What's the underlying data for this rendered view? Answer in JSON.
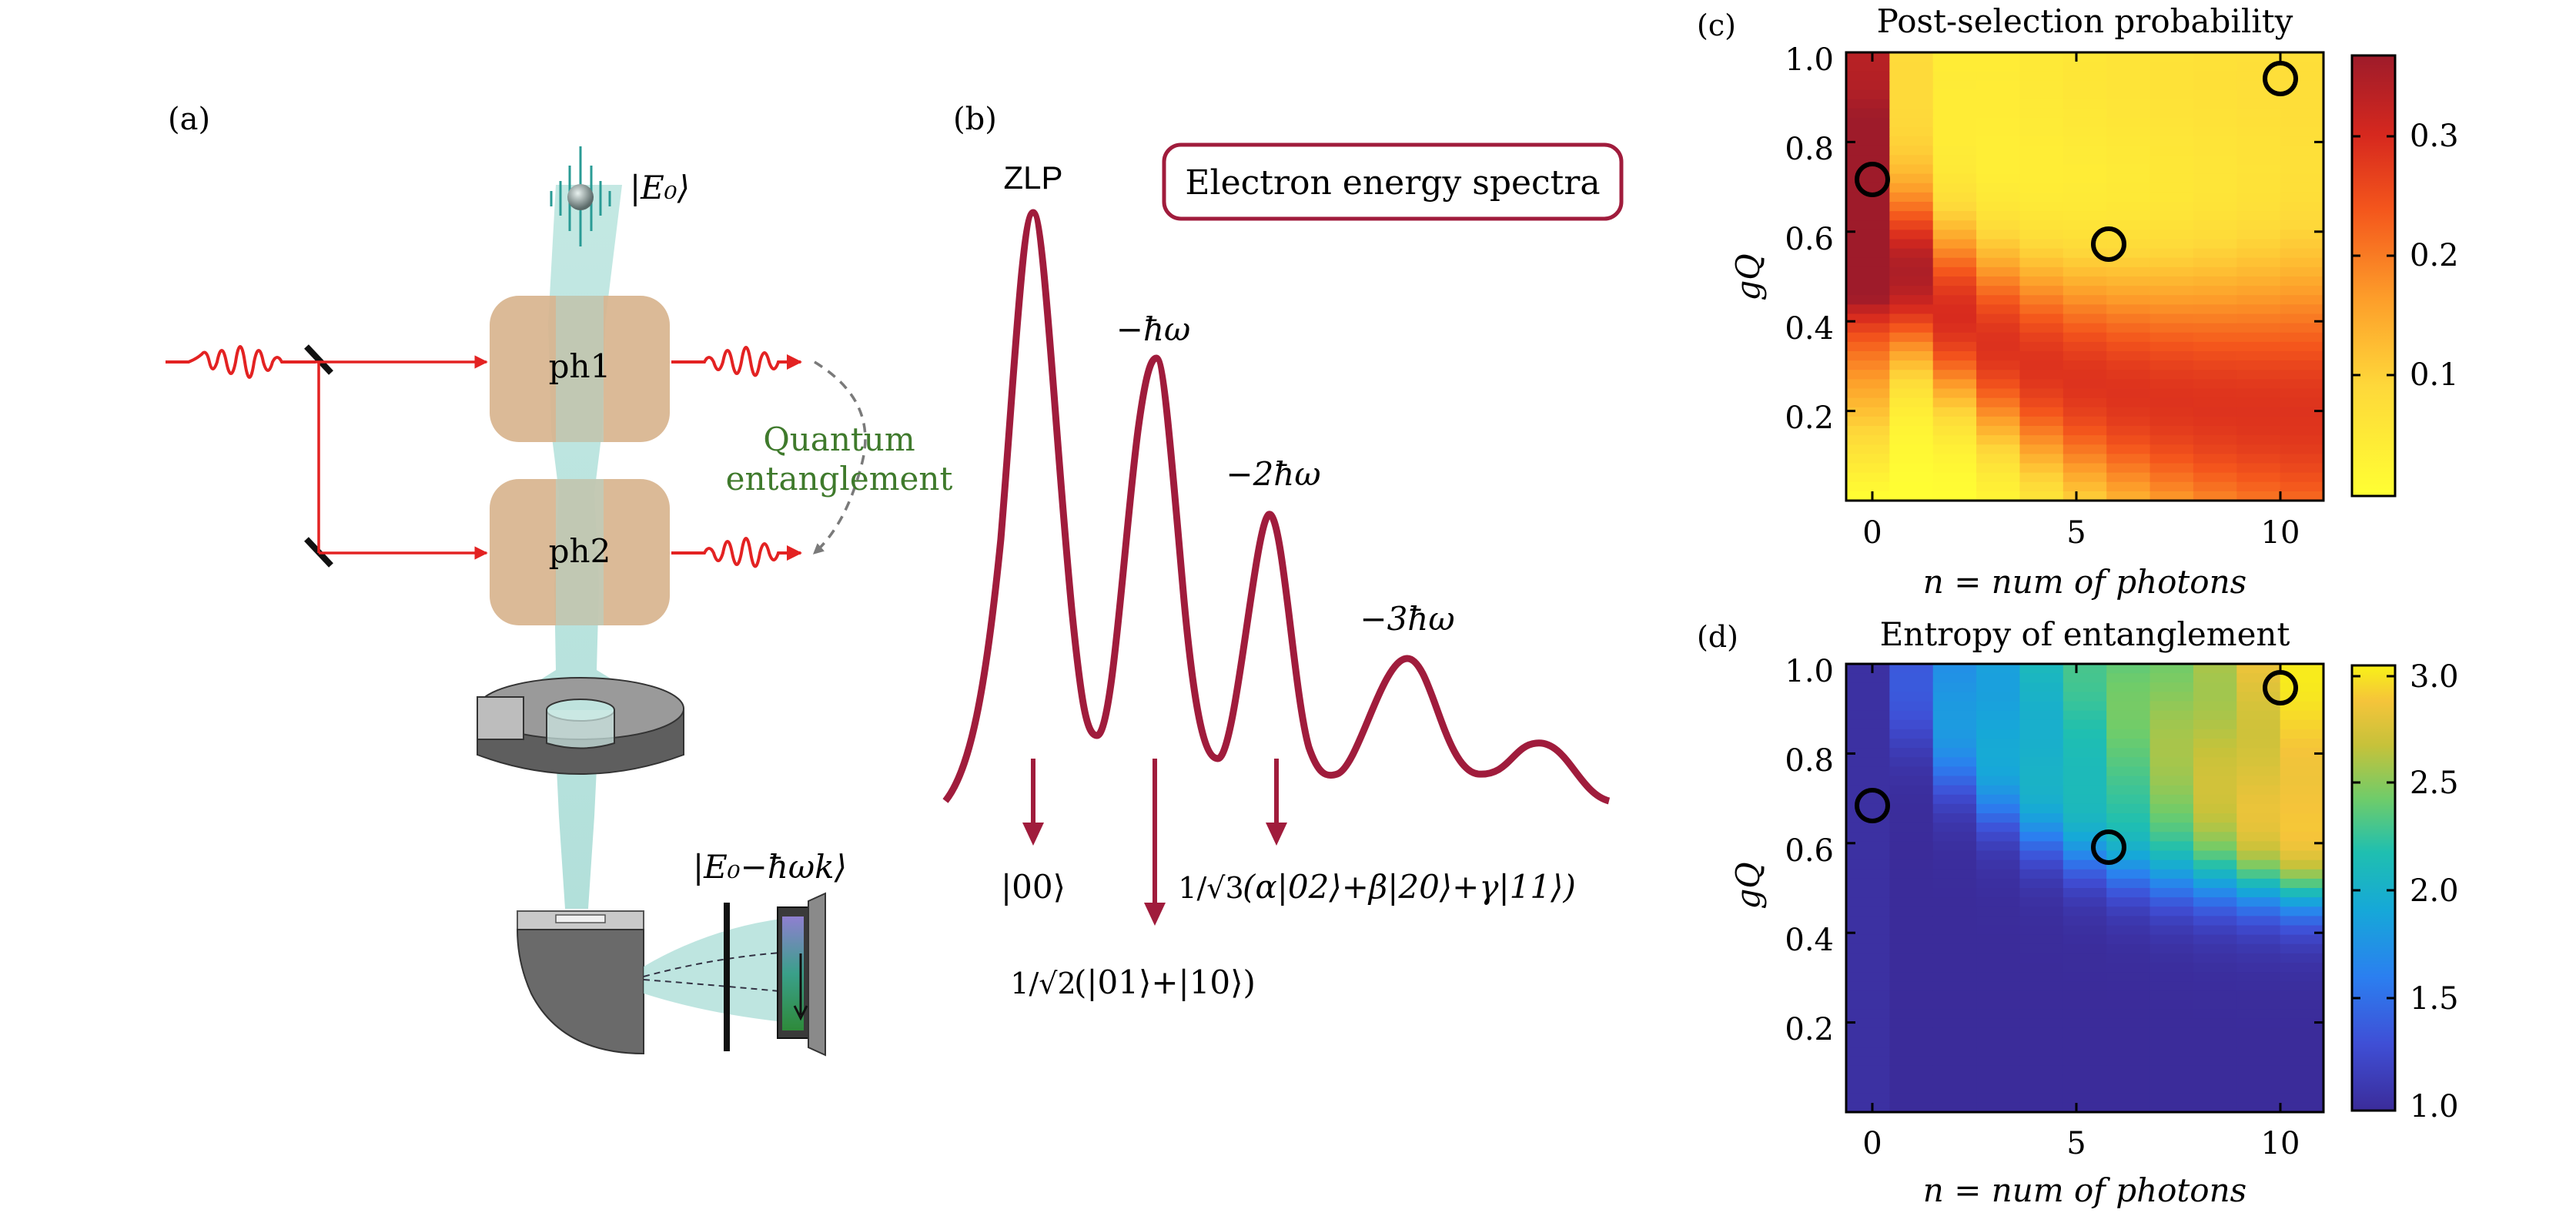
{
  "panel_a": {
    "label": "(a)",
    "ket_input": "|E₀⟩",
    "cavity_1": "ph1",
    "cavity_2": "ph2",
    "entanglement_line1": "Quantum",
    "entanglement_line2": "entanglement",
    "ket_output": "|E₀−ħωk⟩",
    "colors": {
      "laser": "#e32222",
      "cavity": "#d8b48e",
      "beam": "#a8dcd6",
      "entangle_text": "#3f7a2c",
      "metal": "#6b6b6b"
    }
  },
  "panel_b": {
    "label": "(b)",
    "box_title": "Electron energy spectra",
    "peak_0": "ZLP",
    "peak_1": "−ħω",
    "peak_2": "−2ħω",
    "peak_3": "−3ħω",
    "state_0": "|00⟩",
    "state_1_frac": "1/√2",
    "state_1": "(|01⟩+|10⟩)",
    "state_2_frac": "1/√3",
    "state_2": "(α|02⟩+β|20⟩+γ|11⟩)",
    "colors": {
      "spectrum": "#a01c3c"
    }
  },
  "panel_c": {
    "label": "(c)",
    "title": "Post-selection probability",
    "xlabel": "n = num of photons",
    "ylabel": "gQ",
    "x_ticks": [
      "0",
      "5",
      "10"
    ],
    "y_ticks": [
      "0.2",
      "0.4",
      "0.6",
      "0.8",
      "1.0"
    ],
    "colorbar_ticks": [
      "0.1",
      "0.2",
      "0.3"
    ]
  },
  "panel_d": {
    "label": "(d)",
    "title": "Entropy of entanglement",
    "xlabel": "n = num of photons",
    "ylabel": "gQ",
    "x_ticks": [
      "0",
      "5",
      "10"
    ],
    "y_ticks": [
      "0.2",
      "0.4",
      "0.6",
      "0.8",
      "1.0"
    ],
    "colorbar_ticks": [
      "1.0",
      "1.5",
      "2.0",
      "2.5",
      "3.0"
    ]
  },
  "chart_data": [
    {
      "type": "heatmap",
      "title": "Post-selection probability",
      "xlabel": "n = num of photons",
      "ylabel": "gQ",
      "xlim": [
        -0.5,
        10.5
      ],
      "ylim": [
        0.0,
        1.0
      ],
      "x_ticks": [
        0,
        5,
        10
      ],
      "y_ticks": [
        0.2,
        0.4,
        0.6,
        0.8,
        1.0
      ],
      "colorbar": {
        "min": 0.01,
        "max": 0.37,
        "ticks": [
          0.1,
          0.2,
          0.3
        ],
        "colormap": "YlOrRd"
      },
      "markers": [
        {
          "n": 0,
          "g": 0.72
        },
        {
          "n": 6,
          "g": 0.58
        },
        {
          "n": 10,
          "g": 0.95
        }
      ]
    },
    {
      "type": "heatmap",
      "title": "Entropy of entanglement",
      "xlabel": "n = num of photons",
      "ylabel": "gQ",
      "xlim": [
        -0.5,
        10.5
      ],
      "ylim": [
        0.0,
        1.0
      ],
      "x_ticks": [
        0,
        5,
        10
      ],
      "y_ticks": [
        0.2,
        0.4,
        0.6,
        0.8,
        1.0
      ],
      "colorbar": {
        "min": 1.0,
        "max": 3.05,
        "ticks": [
          1.0,
          1.5,
          2.0,
          2.5,
          3.0
        ],
        "colormap": "parula"
      },
      "markers": [
        {
          "n": 0,
          "g": 0.68
        },
        {
          "n": 6,
          "g": 0.6
        },
        {
          "n": 10,
          "g": 0.95
        }
      ]
    }
  ]
}
